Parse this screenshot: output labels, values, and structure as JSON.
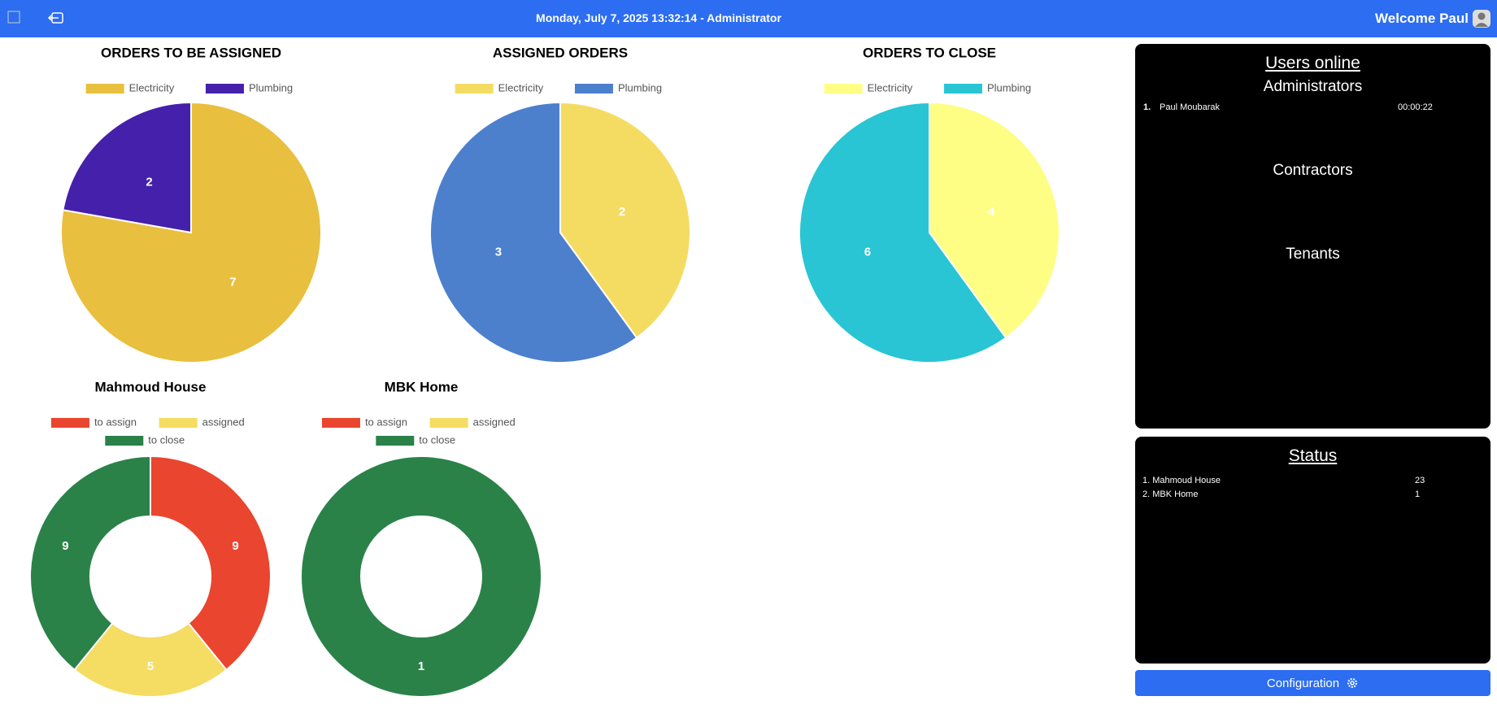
{
  "header": {
    "datetime": "Monday, July 7, 2025 13:32:14 - Administrator",
    "welcome": "Welcome Paul"
  },
  "chart_data": [
    {
      "type": "pie",
      "title": "ORDERS TO BE ASSIGNED",
      "categories": [
        "Electricity",
        "Plumbing"
      ],
      "values": [
        7,
        2
      ],
      "colors": [
        "#e8bf3e",
        "#4520ab"
      ]
    },
    {
      "type": "pie",
      "title": "ASSIGNED ORDERS",
      "categories": [
        "Electricity",
        "Plumbing"
      ],
      "values": [
        2,
        3
      ],
      "colors": [
        "#f4dc62",
        "#4d80cc"
      ]
    },
    {
      "type": "pie",
      "title": "ORDERS TO CLOSE",
      "categories": [
        "Electricity",
        "Plumbing"
      ],
      "values": [
        4,
        6
      ],
      "colors": [
        "#fefe85",
        "#29c5d4"
      ]
    },
    {
      "type": "doughnut",
      "title": "Mahmoud House",
      "categories": [
        "to assign",
        "assigned",
        "to close"
      ],
      "values": [
        9,
        5,
        9
      ],
      "colors": [
        "#e9452f",
        "#f5dc62",
        "#2a8249"
      ]
    },
    {
      "type": "doughnut",
      "title": "MBK Home",
      "categories": [
        "to assign",
        "assigned",
        "to close"
      ],
      "values": [
        0,
        0,
        1
      ],
      "colors": [
        "#e9452f",
        "#f5dc62",
        "#2a8249"
      ]
    }
  ],
  "users_online": {
    "title": "Users online",
    "groups": [
      {
        "name": "Administrators",
        "users": [
          {
            "rank": "1.",
            "name": "Paul Moubarak",
            "time": "00:00:22"
          }
        ]
      },
      {
        "name": "Contractors",
        "users": []
      },
      {
        "name": "Tenants",
        "users": []
      }
    ]
  },
  "status": {
    "title": "Status",
    "items": [
      {
        "label": "1. Mahmoud House",
        "value": 23
      },
      {
        "label": "2. MBK Home",
        "value": 1
      }
    ]
  },
  "configuration": "Configuration"
}
